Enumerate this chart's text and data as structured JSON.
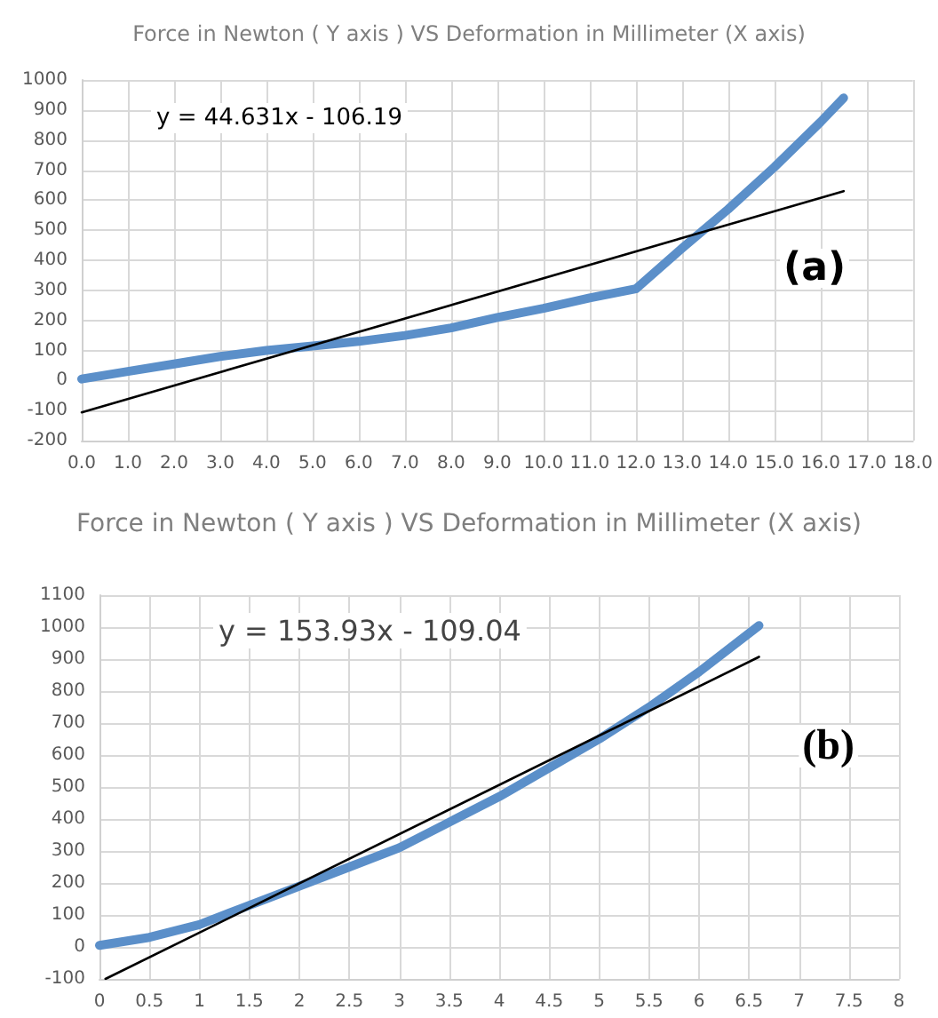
{
  "chart_data": [
    {
      "type": "line",
      "title": "Force in Newton ( Y axis ) VS Deformation in Millimeter (X axis)",
      "annotations": [
        "y = 44.631x - 106.19",
        "(a)"
      ],
      "marker": "none",
      "grid": true,
      "xlim": [
        0,
        18
      ],
      "ylim": [
        -200,
        1000
      ],
      "xticks": [
        {
          "value": 0,
          "label": "0.0"
        },
        {
          "value": 1,
          "label": "1.0"
        },
        {
          "value": 2,
          "label": "2.0"
        },
        {
          "value": 3,
          "label": "3.0"
        },
        {
          "value": 4,
          "label": "4.0"
        },
        {
          "value": 5,
          "label": "5.0"
        },
        {
          "value": 6,
          "label": "6.0"
        },
        {
          "value": 7,
          "label": "7.0"
        },
        {
          "value": 8,
          "label": "8.0"
        },
        {
          "value": 9,
          "label": "9.0"
        },
        {
          "value": 10,
          "label": "10.0"
        },
        {
          "value": 11,
          "label": "11.0"
        },
        {
          "value": 12,
          "label": "12.0"
        },
        {
          "value": 13,
          "label": "13.0"
        },
        {
          "value": 14,
          "label": "14.0"
        },
        {
          "value": 15,
          "label": "15.0"
        },
        {
          "value": 16,
          "label": "16.0"
        },
        {
          "value": 17,
          "label": "17.0"
        },
        {
          "value": 18,
          "label": "18.0"
        }
      ],
      "yticks": [
        -200,
        -100,
        0,
        100,
        200,
        300,
        400,
        500,
        600,
        700,
        800,
        900,
        1000
      ],
      "series": [
        {
          "color": "#5b8fc9",
          "x": [
            0,
            1,
            2,
            3,
            4,
            5,
            6,
            7,
            8,
            9,
            10,
            11,
            12,
            13,
            14,
            15,
            16,
            16.5
          ],
          "values": [
            5,
            30,
            55,
            80,
            100,
            115,
            130,
            150,
            175,
            210,
            240,
            275,
            305,
            440,
            570,
            710,
            860,
            940
          ]
        },
        {
          "color": "#000000",
          "x": [
            0,
            16.5
          ],
          "values": [
            -106,
            630
          ]
        }
      ]
    },
    {
      "type": "line",
      "title": "Force in Newton ( Y axis ) VS Deformation in Millimeter (X axis)",
      "annotations": [
        "y = 153.93x - 109.04",
        "(b)"
      ],
      "marker": "none",
      "grid": true,
      "xlim": [
        0,
        8
      ],
      "ylim": [
        -100,
        1100
      ],
      "xticks": [
        0,
        0.5,
        1,
        1.5,
        2,
        2.5,
        3,
        3.5,
        4,
        4.5,
        5,
        5.5,
        6,
        6.5,
        7,
        7.5,
        8
      ],
      "yticks": [
        -100,
        0,
        100,
        200,
        300,
        400,
        500,
        600,
        700,
        800,
        900,
        1000,
        1100
      ],
      "series": [
        {
          "color": "#5b8fc9",
          "x": [
            0,
            0.5,
            1,
            1.5,
            2,
            2.5,
            3,
            3.5,
            4,
            4.5,
            5,
            5.5,
            6,
            6.6
          ],
          "values": [
            5,
            30,
            70,
            130,
            190,
            250,
            310,
            390,
            470,
            560,
            650,
            750,
            860,
            1005
          ]
        },
        {
          "color": "#000000",
          "x": [
            0.06,
            6.6
          ],
          "values": [
            -100,
            907
          ]
        }
      ]
    }
  ]
}
